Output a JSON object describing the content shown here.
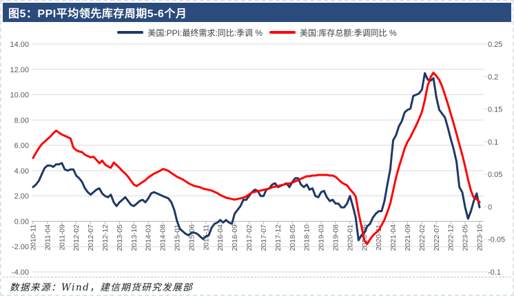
{
  "title": "图5：PPI平均领先库存周期5-6个月",
  "legend": [
    {
      "label": "美国:PPI:最终需求:同比:季调 %",
      "color": "#1f3864"
    },
    {
      "label": "美国:库存总额:季调同比 %",
      "color": "#ff0000"
    }
  ],
  "footer": "数据来源：Wind，建信期货研究发展部",
  "colors": {
    "title_bar_bg": "#2a4b7c",
    "title_text": "#ffffff",
    "grid": "#d9d9d9",
    "axis_line": "#b6b6b6",
    "axis_text": "#595959",
    "ppi_line": "#1f3864",
    "inventory_line": "#ff0000"
  },
  "chart_data": {
    "type": "line",
    "x_unit": "month",
    "x_start": "2010-11",
    "x_end": "2023-10",
    "x_label_every_n_months": 5,
    "x_tick_labels": [
      "2010-11",
      "2011-04",
      "2011-09",
      "2012-02",
      "2012-07",
      "2012-12",
      "2013-05",
      "2013-10",
      "2014-03",
      "2014-08",
      "2015-01",
      "2015-06",
      "2015-11",
      "2016-04",
      "2016-09",
      "2017-02",
      "2017-07",
      "2017-12",
      "2018-05",
      "2018-10",
      "2019-03",
      "2019-08",
      "2020-01",
      "2020-06",
      "2020-11",
      "2021-04",
      "2021-09",
      "2022-02",
      "2022-07",
      "2022-12",
      "2023-05",
      "2023-10"
    ],
    "left_axis": {
      "min": -4,
      "max": 14,
      "step": 2,
      "tick_labels": [
        "14.00",
        "12.00",
        "10.00",
        "8.00",
        "6.00",
        "4.00",
        "2.00",
        "0.00",
        "-2.00",
        "-4.00"
      ]
    },
    "right_axis": {
      "min": -0.1,
      "max": 0.25,
      "step": 0.05,
      "tick_labels": [
        "0.25",
        "0.2",
        "0.15",
        "0.1",
        "0.05",
        "0",
        "-0.05",
        "-0.1"
      ]
    },
    "grid": true,
    "legend_position": "top",
    "series": [
      {
        "name": "美国:PPI:最终需求:同比:季调 %",
        "axis": "left",
        "color": "#1f3864",
        "values": [
          2.7,
          2.9,
          3.2,
          3.7,
          4.2,
          4.4,
          4.4,
          4.3,
          4.5,
          4.5,
          4.6,
          4.1,
          4.0,
          4.1,
          4.1,
          3.6,
          3.4,
          3.1,
          2.6,
          2.3,
          2.1,
          2.3,
          2.5,
          2.6,
          2.2,
          2.0,
          1.9,
          2.1,
          1.5,
          1.2,
          1.5,
          1.7,
          1.9,
          1.6,
          1.3,
          1.2,
          1.4,
          1.6,
          1.7,
          1.5,
          1.8,
          2.2,
          2.3,
          2.2,
          2.1,
          2.0,
          1.9,
          1.8,
          1.5,
          0.9,
          0.0,
          -0.6,
          -0.8,
          -1.0,
          -1.1,
          -0.9,
          -0.9,
          -1.0,
          -1.2,
          -1.4,
          -1.2,
          -1.1,
          -0.5,
          -0.2,
          -0.1,
          0.1,
          -0.1,
          0.1,
          -0.1,
          -0.2,
          0.6,
          0.9,
          1.2,
          1.7,
          1.7,
          2.0,
          2.3,
          2.5,
          2.4,
          2.0,
          2.0,
          2.5,
          2.6,
          2.9,
          3.0,
          2.7,
          2.8,
          2.9,
          3.0,
          2.7,
          3.1,
          3.4,
          3.4,
          2.9,
          2.7,
          2.9,
          2.5,
          2.6,
          2.0,
          1.9,
          2.3,
          2.4,
          1.9,
          1.6,
          1.7,
          1.4,
          1.4,
          1.1,
          1.1,
          1.4,
          2.0,
          1.2,
          0.3,
          -1.5,
          -1.1,
          -0.9,
          -0.4,
          -0.2,
          0.3,
          0.6,
          0.8,
          0.8,
          1.6,
          2.9,
          4.1,
          6.4,
          6.8,
          7.5,
          7.9,
          8.6,
          8.8,
          8.9,
          9.9,
          10.0,
          10.1,
          10.4,
          11.7,
          11.2,
          11.1,
          11.3,
          9.8,
          8.8,
          8.5,
          8.2,
          7.4,
          6.5,
          5.7,
          4.7,
          2.7,
          2.3,
          1.1,
          0.2,
          0.8,
          1.6,
          2.2,
          1.1
        ]
      },
      {
        "name": "美国:库存总额:季调同比 %",
        "axis": "right",
        "color": "#ff0000",
        "values": [
          0.075,
          0.083,
          0.09,
          0.096,
          0.1,
          0.104,
          0.108,
          0.113,
          0.117,
          0.114,
          0.111,
          0.109,
          0.107,
          0.105,
          0.091,
          0.087,
          0.085,
          0.084,
          0.08,
          0.078,
          0.076,
          0.077,
          0.072,
          0.067,
          0.071,
          0.065,
          0.062,
          0.06,
          0.068,
          0.064,
          0.06,
          0.055,
          0.051,
          0.046,
          0.04,
          0.034,
          0.032,
          0.035,
          0.038,
          0.041,
          0.045,
          0.048,
          0.051,
          0.053,
          0.055,
          0.058,
          0.057,
          0.055,
          0.052,
          0.049,
          0.046,
          0.044,
          0.042,
          0.039,
          0.036,
          0.034,
          0.032,
          0.031,
          0.03,
          0.028,
          0.027,
          0.026,
          0.025,
          0.023,
          0.021,
          0.018,
          0.016,
          0.014,
          0.013,
          0.012,
          0.011,
          0.012,
          0.013,
          0.014,
          0.016,
          0.019,
          0.022,
          0.023,
          0.024,
          0.025,
          0.026,
          0.027,
          0.028,
          0.03,
          0.031,
          0.032,
          0.033,
          0.034,
          0.035,
          0.036,
          0.037,
          0.039,
          0.041,
          0.043,
          0.045,
          0.047,
          0.047,
          0.048,
          0.048,
          0.049,
          0.049,
          0.049,
          0.049,
          0.048,
          0.048,
          0.046,
          0.042,
          0.038,
          0.035,
          0.033,
          0.027,
          0.022,
          0.016,
          -0.009,
          -0.03,
          -0.052,
          -0.057,
          -0.05,
          -0.044,
          -0.04,
          -0.036,
          -0.028,
          -0.02,
          -0.008,
          0.005,
          0.025,
          0.045,
          0.061,
          0.075,
          0.09,
          0.1,
          0.107,
          0.116,
          0.125,
          0.135,
          0.146,
          0.164,
          0.186,
          0.199,
          0.206,
          0.201,
          0.195,
          0.185,
          0.172,
          0.158,
          0.143,
          0.128,
          0.112,
          0.096,
          0.08,
          0.062,
          0.042,
          0.025,
          0.014,
          0.012,
          0.007
        ]
      }
    ]
  }
}
